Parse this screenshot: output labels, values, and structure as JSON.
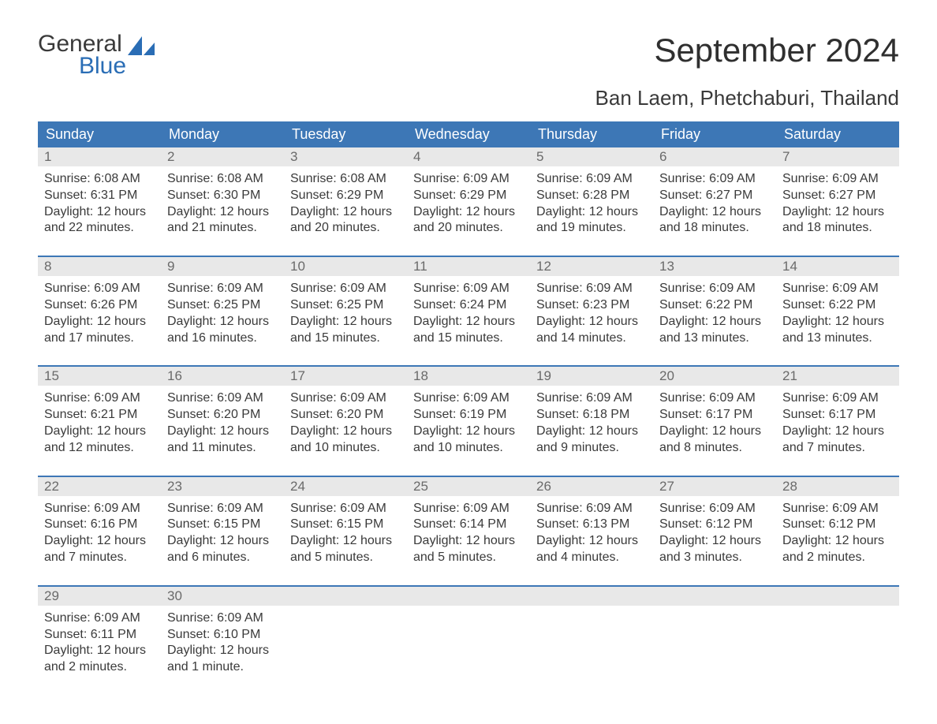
{
  "logo": {
    "text_general": "General",
    "text_blue": "Blue"
  },
  "title": "September 2024",
  "location": "Ban Laem, Phetchaburi, Thailand",
  "colors": {
    "header_bg": "#3d77b6",
    "header_text": "#ffffff",
    "daynum_bg": "#e8e8e8",
    "daynum_text": "#6a6a6a",
    "body_text": "#3a3a3a",
    "week_border": "#3d77b6",
    "logo_blue": "#2a6db5",
    "page_bg": "#ffffff"
  },
  "typography": {
    "title_fontsize": 42,
    "location_fontsize": 26,
    "dow_fontsize": 18,
    "cell_fontsize": 16,
    "daynum_fontsize": 17,
    "logo_fontsize": 30
  },
  "days_of_week": [
    "Sunday",
    "Monday",
    "Tuesday",
    "Wednesday",
    "Thursday",
    "Friday",
    "Saturday"
  ],
  "labels": {
    "sunrise": "Sunrise:",
    "sunset": "Sunset:",
    "daylight": "Daylight:"
  },
  "weeks": [
    [
      {
        "num": "1",
        "sunrise": "6:08 AM",
        "sunset": "6:31 PM",
        "daylight": "12 hours and 22 minutes."
      },
      {
        "num": "2",
        "sunrise": "6:08 AM",
        "sunset": "6:30 PM",
        "daylight": "12 hours and 21 minutes."
      },
      {
        "num": "3",
        "sunrise": "6:08 AM",
        "sunset": "6:29 PM",
        "daylight": "12 hours and 20 minutes."
      },
      {
        "num": "4",
        "sunrise": "6:09 AM",
        "sunset": "6:29 PM",
        "daylight": "12 hours and 20 minutes."
      },
      {
        "num": "5",
        "sunrise": "6:09 AM",
        "sunset": "6:28 PM",
        "daylight": "12 hours and 19 minutes."
      },
      {
        "num": "6",
        "sunrise": "6:09 AM",
        "sunset": "6:27 PM",
        "daylight": "12 hours and 18 minutes."
      },
      {
        "num": "7",
        "sunrise": "6:09 AM",
        "sunset": "6:27 PM",
        "daylight": "12 hours and 18 minutes."
      }
    ],
    [
      {
        "num": "8",
        "sunrise": "6:09 AM",
        "sunset": "6:26 PM",
        "daylight": "12 hours and 17 minutes."
      },
      {
        "num": "9",
        "sunrise": "6:09 AM",
        "sunset": "6:25 PM",
        "daylight": "12 hours and 16 minutes."
      },
      {
        "num": "10",
        "sunrise": "6:09 AM",
        "sunset": "6:25 PM",
        "daylight": "12 hours and 15 minutes."
      },
      {
        "num": "11",
        "sunrise": "6:09 AM",
        "sunset": "6:24 PM",
        "daylight": "12 hours and 15 minutes."
      },
      {
        "num": "12",
        "sunrise": "6:09 AM",
        "sunset": "6:23 PM",
        "daylight": "12 hours and 14 minutes."
      },
      {
        "num": "13",
        "sunrise": "6:09 AM",
        "sunset": "6:22 PM",
        "daylight": "12 hours and 13 minutes."
      },
      {
        "num": "14",
        "sunrise": "6:09 AM",
        "sunset": "6:22 PM",
        "daylight": "12 hours and 13 minutes."
      }
    ],
    [
      {
        "num": "15",
        "sunrise": "6:09 AM",
        "sunset": "6:21 PM",
        "daylight": "12 hours and 12 minutes."
      },
      {
        "num": "16",
        "sunrise": "6:09 AM",
        "sunset": "6:20 PM",
        "daylight": "12 hours and 11 minutes."
      },
      {
        "num": "17",
        "sunrise": "6:09 AM",
        "sunset": "6:20 PM",
        "daylight": "12 hours and 10 minutes."
      },
      {
        "num": "18",
        "sunrise": "6:09 AM",
        "sunset": "6:19 PM",
        "daylight": "12 hours and 10 minutes."
      },
      {
        "num": "19",
        "sunrise": "6:09 AM",
        "sunset": "6:18 PM",
        "daylight": "12 hours and 9 minutes."
      },
      {
        "num": "20",
        "sunrise": "6:09 AM",
        "sunset": "6:17 PM",
        "daylight": "12 hours and 8 minutes."
      },
      {
        "num": "21",
        "sunrise": "6:09 AM",
        "sunset": "6:17 PM",
        "daylight": "12 hours and 7 minutes."
      }
    ],
    [
      {
        "num": "22",
        "sunrise": "6:09 AM",
        "sunset": "6:16 PM",
        "daylight": "12 hours and 7 minutes."
      },
      {
        "num": "23",
        "sunrise": "6:09 AM",
        "sunset": "6:15 PM",
        "daylight": "12 hours and 6 minutes."
      },
      {
        "num": "24",
        "sunrise": "6:09 AM",
        "sunset": "6:15 PM",
        "daylight": "12 hours and 5 minutes."
      },
      {
        "num": "25",
        "sunrise": "6:09 AM",
        "sunset": "6:14 PM",
        "daylight": "12 hours and 5 minutes."
      },
      {
        "num": "26",
        "sunrise": "6:09 AM",
        "sunset": "6:13 PM",
        "daylight": "12 hours and 4 minutes."
      },
      {
        "num": "27",
        "sunrise": "6:09 AM",
        "sunset": "6:12 PM",
        "daylight": "12 hours and 3 minutes."
      },
      {
        "num": "28",
        "sunrise": "6:09 AM",
        "sunset": "6:12 PM",
        "daylight": "12 hours and 2 minutes."
      }
    ],
    [
      {
        "num": "29",
        "sunrise": "6:09 AM",
        "sunset": "6:11 PM",
        "daylight": "12 hours and 2 minutes."
      },
      {
        "num": "30",
        "sunrise": "6:09 AM",
        "sunset": "6:10 PM",
        "daylight": "12 hours and 1 minute."
      },
      null,
      null,
      null,
      null,
      null
    ]
  ]
}
